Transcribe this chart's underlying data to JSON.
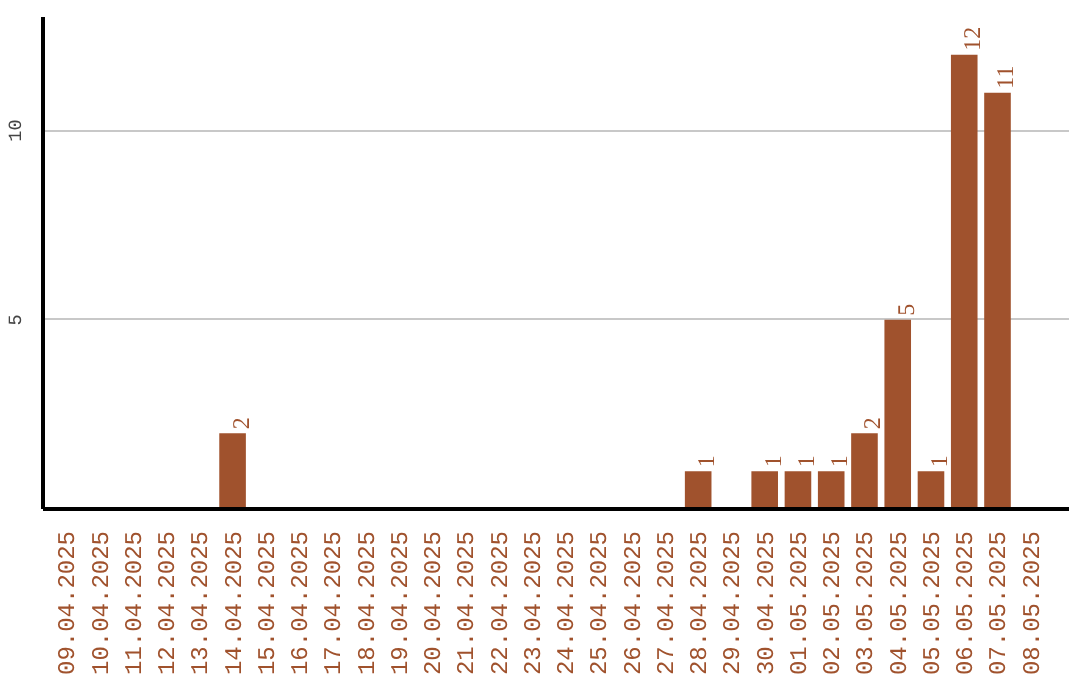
{
  "chart_data": {
    "type": "bar",
    "categories": [
      "09.04.2025",
      "10.04.2025",
      "11.04.2025",
      "12.04.2025",
      "13.04.2025",
      "14.04.2025",
      "15.04.2025",
      "16.04.2025",
      "17.04.2025",
      "18.04.2025",
      "19.04.2025",
      "20.04.2025",
      "21.04.2025",
      "22.04.2025",
      "23.04.2025",
      "24.04.2025",
      "25.04.2025",
      "26.04.2025",
      "27.04.2025",
      "28.04.2025",
      "29.04.2025",
      "30.04.2025",
      "01.05.2025",
      "02.05.2025",
      "03.05.2025",
      "04.05.2025",
      "05.05.2025",
      "06.05.2025",
      "07.05.2025",
      "08.05.2025"
    ],
    "values": [
      0,
      0,
      0,
      0,
      0,
      2,
      0,
      0,
      0,
      0,
      0,
      0,
      0,
      0,
      0,
      0,
      0,
      0,
      0,
      1,
      0,
      1,
      1,
      1,
      2,
      5,
      1,
      12,
      11,
      0
    ],
    "value_labels": [
      null,
      null,
      null,
      null,
      null,
      "2",
      null,
      null,
      null,
      null,
      null,
      null,
      null,
      null,
      null,
      null,
      null,
      null,
      null,
      "1",
      null,
      "1",
      "1",
      "1",
      "2",
      "5",
      "1",
      "12",
      "11",
      null
    ],
    "color": "#a0522d",
    "ylim": [
      0,
      13
    ],
    "yticks": [
      5,
      10
    ],
    "grid": "y"
  }
}
